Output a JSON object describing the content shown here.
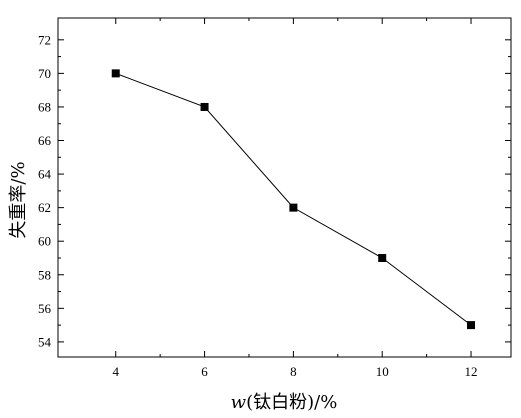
{
  "chart_data": {
    "type": "line",
    "xlabel_italic": "w",
    "xlabel_rest": "(钛白粉)/%",
    "ylabel": "失重率/%",
    "x": [
      4,
      6,
      8,
      10,
      12
    ],
    "y": [
      70,
      68,
      62,
      59,
      55
    ],
    "xlim": [
      2.7,
      12.9
    ],
    "ylim": [
      53.1,
      73.3
    ],
    "xticks": [
      4,
      6,
      8,
      10,
      12
    ],
    "yticks": [
      54,
      56,
      58,
      60,
      62,
      64,
      66,
      68,
      70,
      72
    ],
    "marker": "square",
    "grid": false,
    "colors": {
      "line": "#000000",
      "marker": "#000000",
      "frame": "#000000"
    }
  }
}
